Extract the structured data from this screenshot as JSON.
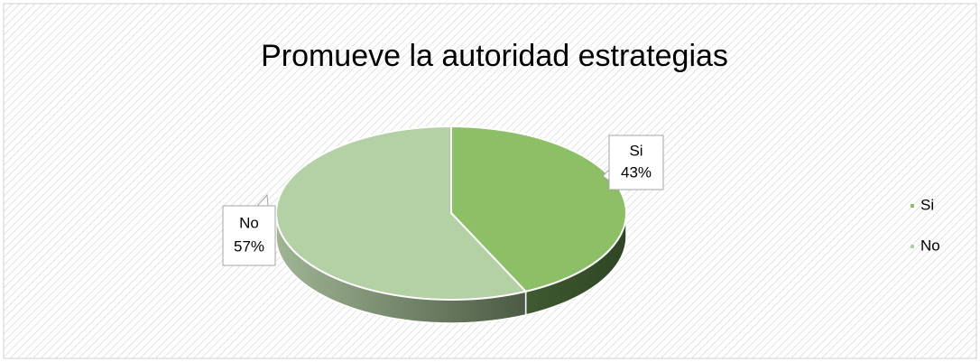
{
  "chart_data": {
    "type": "pie",
    "title": "Promueve la autoridad estrategias",
    "categories": [
      "Si",
      "No"
    ],
    "values": [
      43,
      57
    ],
    "value_labels": [
      "43%",
      "57%"
    ],
    "colors": [
      "#8dbf66",
      "#b4d0a5"
    ],
    "legend": "right"
  }
}
